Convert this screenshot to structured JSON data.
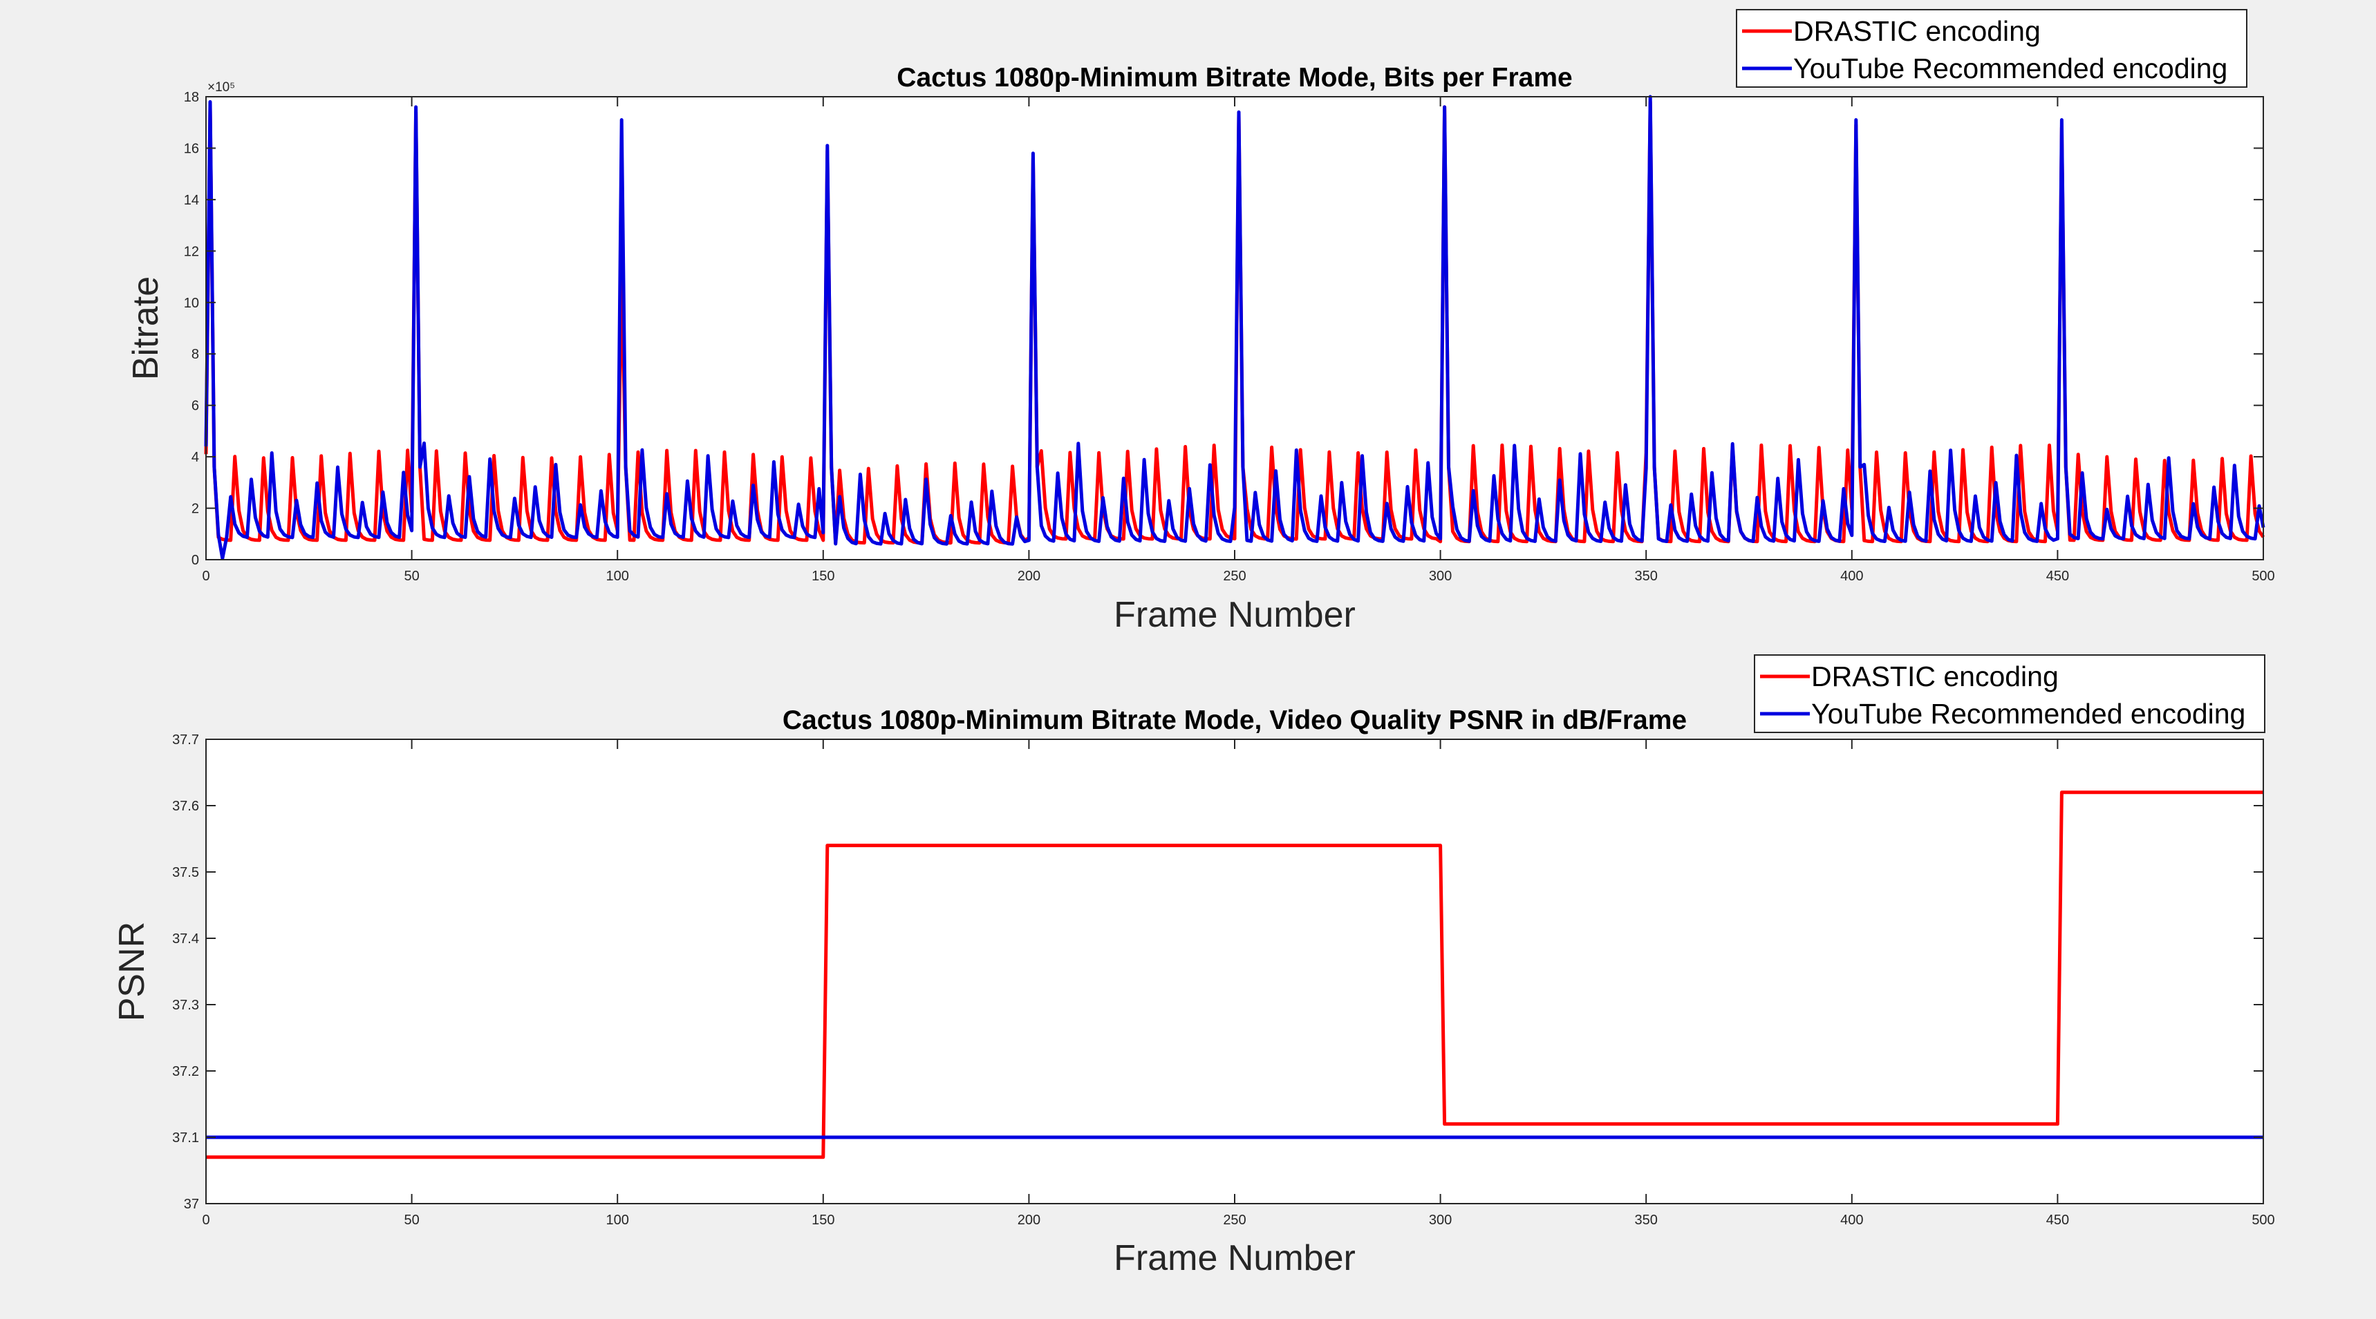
{
  "chart_data": [
    {
      "type": "line",
      "title": "Cactus 1080p-Minimum Bitrate Mode, Bits per Frame",
      "xlabel": "Frame Number",
      "ylabel": "Bitrate",
      "exponent_label": "×10⁵",
      "xlim": [
        0,
        500
      ],
      "ylim": [
        0,
        18
      ],
      "xticks": [
        0,
        50,
        100,
        150,
        200,
        250,
        300,
        350,
        400,
        450,
        500
      ],
      "yticks": [
        0,
        2,
        4,
        6,
        8,
        10,
        12,
        14,
        16,
        18
      ],
      "legend_position": "top-right",
      "grid": false,
      "series": [
        {
          "name": "DRASTIC encoding",
          "color": "#ff0000",
          "pattern": {
            "segments": [
              {
                "from": 0,
                "to": 150,
                "peak_period": 7,
                "peak": 4.1,
                "base": 0.75
              },
              {
                "from": 150,
                "to": 200,
                "peak_period": 7,
                "peak": 3.6,
                "base": 0.65
              },
              {
                "from": 200,
                "to": 300,
                "peak_period": 7,
                "peak": 4.3,
                "base": 0.8
              },
              {
                "from": 300,
                "to": 450,
                "peak_period": 7,
                "peak": 4.3,
                "base": 0.7
              },
              {
                "from": 450,
                "to": 500,
                "peak_period": 7,
                "peak": 4.0,
                "base": 0.75
              }
            ],
            "iframes": [
              {
                "x": 1,
                "y": 17.6
              },
              {
                "x": 51,
                "y": 17.4
              },
              {
                "x": 101,
                "y": 11.2
              },
              {
                "x": 151,
                "y": 15.9
              },
              {
                "x": 201,
                "y": 15.6
              },
              {
                "x": 251,
                "y": 17.3
              },
              {
                "x": 301,
                "y": 17.6
              },
              {
                "x": 351,
                "y": 17.8
              },
              {
                "x": 401,
                "y": 16.9
              },
              {
                "x": 451,
                "y": 16.8
              }
            ]
          }
        },
        {
          "name": "YouTube Recommended encoding",
          "color": "#0000e0",
          "pattern": {
            "segments": [
              {
                "from": 0,
                "to": 150,
                "peak_period": 5.3,
                "peak": 4.4,
                "base": 0.85
              },
              {
                "from": 150,
                "to": 200,
                "peak_period": 5.3,
                "peak": 3.3,
                "base": 0.6
              },
              {
                "from": 200,
                "to": 300,
                "peak_period": 5.3,
                "peak": 4.4,
                "base": 0.7
              },
              {
                "from": 300,
                "to": 450,
                "peak_period": 5.3,
                "peak": 4.4,
                "base": 0.7
              },
              {
                "from": 450,
                "to": 500,
                "peak_period": 5.3,
                "peak": 3.9,
                "base": 0.8
              }
            ],
            "iframes": [
              {
                "x": 1,
                "y": 17.8
              },
              {
                "x": 51,
                "y": 17.6
              },
              {
                "x": 101,
                "y": 17.1
              },
              {
                "x": 151,
                "y": 16.1
              },
              {
                "x": 201,
                "y": 15.8
              },
              {
                "x": 251,
                "y": 17.4
              },
              {
                "x": 301,
                "y": 17.6
              },
              {
                "x": 351,
                "y": 18.0
              },
              {
                "x": 401,
                "y": 17.1
              },
              {
                "x": 451,
                "y": 17.1
              }
            ]
          }
        }
      ]
    },
    {
      "type": "line",
      "title": "Cactus 1080p-Minimum Bitrate Mode, Video Quality PSNR in dB/Frame",
      "xlabel": "Frame Number",
      "ylabel": "PSNR",
      "xlim": [
        0,
        500
      ],
      "ylim": [
        37,
        37.7
      ],
      "xticks": [
        0,
        50,
        100,
        150,
        200,
        250,
        300,
        350,
        400,
        450,
        500
      ],
      "yticks": [
        37,
        37.1,
        37.2,
        37.3,
        37.4,
        37.5,
        37.6,
        37.7
      ],
      "ytick_labels": [
        "37",
        "37.1",
        "37.2",
        "37.3",
        "37.4",
        "37.5",
        "37.6",
        "37.7"
      ],
      "legend_position": "top-right",
      "grid": false,
      "series": [
        {
          "name": "DRASTIC encoding",
          "color": "#ff0000",
          "x": [
            0,
            150,
            151,
            300,
            301,
            450,
            451,
            500
          ],
          "y": [
            37.07,
            37.07,
            37.54,
            37.54,
            37.12,
            37.12,
            37.62,
            37.62
          ]
        },
        {
          "name": "YouTube Recommended encoding",
          "color": "#0000e0",
          "x": [
            0,
            500
          ],
          "y": [
            37.1,
            37.1
          ]
        }
      ]
    }
  ]
}
